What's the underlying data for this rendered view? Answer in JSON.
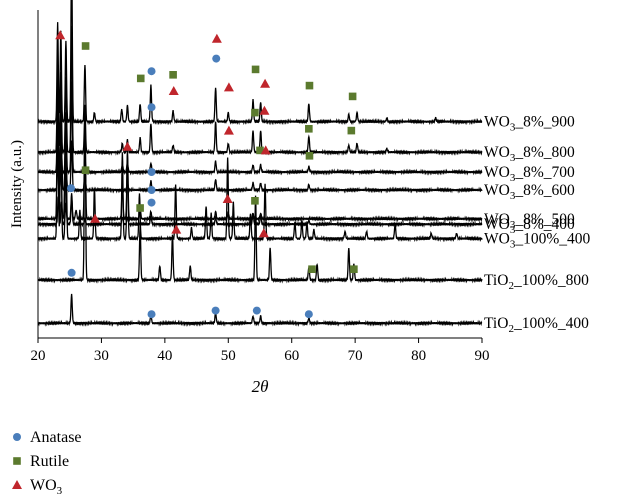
{
  "chart_data": {
    "type": "line",
    "xlabel": "2θ",
    "ylabel": "Intensity (a.u.)",
    "xlim": [
      20,
      90
    ],
    "x_ticks": [
      "20",
      "30",
      "40",
      "50",
      "60",
      "70",
      "80",
      "90"
    ],
    "legend": {
      "placement": "bottom-left",
      "entries": [
        {
          "name": "Anatase",
          "marker": "circle",
          "color": "#4a7ebb"
        },
        {
          "name": "Rutile",
          "marker": "square",
          "color": "#5b7a2e"
        },
        {
          "name": "WO3",
          "marker": "triangle",
          "color": "#c0262c"
        }
      ]
    },
    "series": [
      {
        "name": "WO3_8%_900",
        "name_parts": [
          "WO",
          "3",
          "_8%_900"
        ],
        "baseline": 0.62,
        "peaks": [
          [
            23.1,
            0.55
          ],
          [
            23.6,
            0.5
          ],
          [
            24.4,
            0.45
          ],
          [
            25.3,
            0.95
          ],
          [
            27.4,
            0.32
          ],
          [
            28.9,
            0.05
          ],
          [
            33.2,
            0.07
          ],
          [
            34.1,
            0.09
          ],
          [
            36.1,
            0.1
          ],
          [
            37.8,
            0.2
          ],
          [
            41.3,
            0.06
          ],
          [
            48.0,
            0.19
          ],
          [
            50.0,
            0.05
          ],
          [
            53.9,
            0.12
          ],
          [
            55.1,
            0.11
          ],
          [
            62.7,
            0.1
          ],
          [
            69.0,
            0.04
          ],
          [
            70.3,
            0.05
          ],
          [
            75.0,
            0.02
          ],
          [
            82.7,
            0.02
          ]
        ]
      },
      {
        "name": "WO3_8%_800",
        "name_parts": [
          "WO",
          "3",
          "_8%_800"
        ],
        "baseline": 0.79,
        "peaks": [
          [
            23.1,
            0.5
          ],
          [
            23.6,
            0.45
          ],
          [
            24.4,
            0.42
          ],
          [
            25.3,
            0.7
          ],
          [
            27.4,
            0.24
          ],
          [
            33.3,
            0.05
          ],
          [
            34.1,
            0.07
          ],
          [
            36.1,
            0.08
          ],
          [
            37.8,
            0.16
          ],
          [
            41.3,
            0.04
          ],
          [
            48.0,
            0.17
          ],
          [
            50.0,
            0.05
          ],
          [
            53.9,
            0.12
          ],
          [
            55.1,
            0.12
          ],
          [
            62.7,
            0.09
          ],
          [
            69.0,
            0.04
          ],
          [
            70.3,
            0.05
          ],
          [
            75.0,
            0.02
          ]
        ]
      },
      {
        "name": "WO3_8%_700",
        "name_parts": [
          "WO",
          "3",
          "_8%_700"
        ],
        "baseline": 0.9,
        "peaks": [
          [
            23.1,
            0.35
          ],
          [
            23.6,
            0.3
          ],
          [
            24.4,
            0.28
          ],
          [
            25.3,
            0.5
          ],
          [
            27.4,
            0.08
          ],
          [
            33.3,
            0.04
          ],
          [
            34.1,
            0.05
          ],
          [
            37.8,
            0.05
          ],
          [
            48.0,
            0.06
          ],
          [
            53.9,
            0.04
          ],
          [
            55.1,
            0.04
          ],
          [
            62.7,
            0.03
          ]
        ]
      },
      {
        "name": "WO3_8%_600",
        "name_parts": [
          "WO",
          "3",
          "_8%_600"
        ],
        "baseline": 1.0,
        "peaks": [
          [
            23.2,
            0.25
          ],
          [
            23.7,
            0.22
          ],
          [
            24.4,
            0.2
          ],
          [
            25.3,
            0.28
          ],
          [
            27.4,
            0.1
          ],
          [
            34.1,
            0.04
          ],
          [
            37.8,
            0.05
          ],
          [
            48.0,
            0.06
          ],
          [
            53.9,
            0.04
          ],
          [
            55.1,
            0.04
          ],
          [
            62.7,
            0.03
          ]
        ]
      },
      {
        "name": "WO3_8%_500",
        "name_parts": [
          "WO",
          "3",
          "_8%_500"
        ],
        "baseline": 1.16,
        "peaks": [
          [
            23.1,
            0.8
          ],
          [
            23.6,
            0.5
          ],
          [
            24.3,
            0.45
          ],
          [
            25.3,
            0.14
          ],
          [
            26.0,
            0.05
          ],
          [
            27.4,
            0.55
          ],
          [
            33.3,
            0.2
          ],
          [
            34.1,
            0.35
          ],
          [
            36.1,
            0.06
          ],
          [
            37.8,
            0.04
          ],
          [
            48.0,
            0.04
          ],
          [
            50.0,
            0.03
          ],
          [
            53.9,
            0.03
          ],
          [
            55.1,
            0.03
          ]
        ]
      },
      {
        "name": "WO3_8%_400",
        "name_parts": [
          "WO",
          "3",
          "_8%_400"
        ],
        "baseline": 1.19,
        "peaks": [
          [
            23.2,
            0.15
          ],
          [
            23.7,
            0.12
          ],
          [
            24.4,
            0.12
          ],
          [
            25.3,
            0.15
          ],
          [
            27.4,
            0.03
          ],
          [
            33.3,
            0.04
          ],
          [
            34.1,
            0.04
          ],
          [
            37.8,
            0.04
          ],
          [
            48.0,
            0.04
          ],
          [
            53.9,
            0.05
          ],
          [
            55.1,
            0.05
          ],
          [
            62.7,
            0.02
          ]
        ]
      },
      {
        "name": "WO3_100%_400",
        "name_parts": [
          "WO",
          "3",
          "_100%_400"
        ],
        "baseline": 1.27,
        "peaks": [
          [
            23.1,
            0.8
          ],
          [
            23.6,
            0.75
          ],
          [
            24.4,
            0.7
          ],
          [
            26.6,
            0.16
          ],
          [
            28.9,
            0.28
          ],
          [
            33.3,
            0.48
          ],
          [
            34.1,
            0.5
          ],
          [
            36.0,
            0.25
          ],
          [
            41.7,
            0.3
          ],
          [
            44.2,
            0.06
          ],
          [
            46.5,
            0.18
          ],
          [
            47.3,
            0.14
          ],
          [
            49.9,
            0.45
          ],
          [
            50.8,
            0.2
          ],
          [
            53.5,
            0.14
          ],
          [
            55.8,
            0.3
          ],
          [
            60.5,
            0.09
          ],
          [
            61.6,
            0.1
          ],
          [
            62.4,
            0.09
          ],
          [
            63.5,
            0.05
          ],
          [
            68.4,
            0.04
          ],
          [
            71.8,
            0.04
          ],
          [
            76.3,
            0.08
          ],
          [
            82.0,
            0.03
          ],
          [
            86.0,
            0.03
          ]
        ]
      },
      {
        "name": "TiO2_100%_800",
        "name_parts": [
          "TiO",
          "2",
          "_100%_800"
        ],
        "baseline": 1.5,
        "peaks": [
          [
            27.4,
            0.97
          ],
          [
            36.1,
            0.3
          ],
          [
            39.2,
            0.08
          ],
          [
            41.2,
            0.25
          ],
          [
            44.0,
            0.08
          ],
          [
            54.3,
            0.47
          ],
          [
            56.6,
            0.18
          ],
          [
            62.7,
            0.07
          ],
          [
            64.0,
            0.09
          ],
          [
            69.0,
            0.18
          ],
          [
            69.8,
            0.09
          ]
        ]
      },
      {
        "name": "TiO2_100%_400",
        "name_parts": [
          "TiO",
          "2",
          "_100%_400"
        ],
        "baseline": 1.74,
        "peaks": [
          [
            25.3,
            0.16
          ],
          [
            37.8,
            0.04
          ],
          [
            48.0,
            0.06
          ],
          [
            53.9,
            0.04
          ],
          [
            55.1,
            0.04
          ],
          [
            62.7,
            0.03
          ]
        ]
      }
    ],
    "phase_markers": [
      {
        "phase": "Anatase",
        "x": 25.3,
        "on": "WO3_8%_900",
        "height": 1.01
      },
      {
        "phase": "WO3",
        "x": 23.5,
        "on": "WO3_8%_900",
        "height": 0.48
      },
      {
        "phase": "Rutile",
        "x": 27.5,
        "on": "WO3_8%_900",
        "height": 0.42
      },
      {
        "phase": "Rutile",
        "x": 36.2,
        "on": "WO3_8%_900",
        "height": 0.24
      },
      {
        "phase": "Anatase",
        "x": 37.9,
        "on": "WO3_8%_900",
        "height": 0.28
      },
      {
        "phase": "Rutile",
        "x": 41.3,
        "on": "WO3_8%_900",
        "height": 0.26
      },
      {
        "phase": "WO3",
        "x": 41.4,
        "on": "WO3_8%_900",
        "height": 0.17
      },
      {
        "phase": "WO3",
        "x": 48.2,
        "on": "WO3_8%_900",
        "height": 0.46
      },
      {
        "phase": "Anatase",
        "x": 48.1,
        "on": "WO3_8%_900",
        "height": 0.35
      },
      {
        "phase": "WO3",
        "x": 50.1,
        "on": "WO3_8%_900",
        "height": 0.19
      },
      {
        "phase": "Rutile",
        "x": 54.3,
        "on": "WO3_8%_900",
        "height": 0.29
      },
      {
        "phase": "WO3",
        "x": 55.8,
        "on": "WO3_8%_900",
        "height": 0.21
      },
      {
        "phase": "Rutile",
        "x": 62.8,
        "on": "WO3_8%_900",
        "height": 0.2
      },
      {
        "phase": "Rutile",
        "x": 69.6,
        "on": "WO3_8%_900",
        "height": 0.14
      },
      {
        "phase": "Anatase",
        "x": 37.9,
        "on": "WO3_8%_800",
        "height": 0.25
      },
      {
        "phase": "WO3",
        "x": 50.1,
        "on": "WO3_8%_800",
        "height": 0.12
      },
      {
        "phase": "Rutile",
        "x": 54.2,
        "on": "WO3_8%_800",
        "height": 0.22
      },
      {
        "phase": "WO3",
        "x": 55.7,
        "on": "WO3_8%_800",
        "height": 0.23
      },
      {
        "phase": "Rutile",
        "x": 62.7,
        "on": "WO3_8%_800",
        "height": 0.13
      },
      {
        "phase": "Rutile",
        "x": 69.4,
        "on": "WO3_8%_800",
        "height": 0.12
      },
      {
        "phase": "Rutile",
        "x": 55.0,
        "on": "WO3_8%_800",
        "height": 0.01
      },
      {
        "phase": "WO3",
        "x": 55.9,
        "on": "WO3_8%_800",
        "height": 0.01
      },
      {
        "phase": "Rutile",
        "x": 62.8,
        "on": "WO3_8%_700",
        "height": 0.09
      },
      {
        "phase": "Rutile",
        "x": 27.5,
        "on": "WO3_8%_700",
        "height": 0.01
      },
      {
        "phase": "Anatase",
        "x": 37.9,
        "on": "WO3_8%_700",
        "height": -0.1
      },
      {
        "phase": "WO3",
        "x": 34.1,
        "on": "WO3_8%_500",
        "height": 0.4
      },
      {
        "phase": "Anatase",
        "x": 37.9,
        "on": "WO3_8%_500",
        "height": 0.26
      },
      {
        "phase": "Anatase",
        "x": 25.2,
        "on": "WO3_8%_500",
        "height": 0.17
      },
      {
        "phase": "Rutile",
        "x": 36.1,
        "on": "WO3_8%_400",
        "height": 0.09
      },
      {
        "phase": "Anatase",
        "x": 37.9,
        "on": "WO3_8%_400",
        "height": 0.12
      },
      {
        "phase": "WO3",
        "x": 49.9,
        "on": "WO3_8%_400",
        "height": 0.14
      },
      {
        "phase": "Rutile",
        "x": 54.2,
        "on": "WO3_8%_400",
        "height": 0.13
      },
      {
        "phase": "WO3",
        "x": 29.0,
        "on": "WO3_8%_400",
        "height": 0.03
      },
      {
        "phase": "WO3",
        "x": 41.8,
        "on": "WO3_8%_400",
        "height": -0.03
      },
      {
        "phase": "WO3",
        "x": 55.6,
        "on": "WO3_8%_400",
        "height": -0.05
      },
      {
        "phase": "Anatase",
        "x": 25.3,
        "on": "TiO2_100%_800",
        "height": 0.04
      },
      {
        "phase": "Rutile",
        "x": 63.2,
        "on": "TiO2_100%_800",
        "height": 0.06
      },
      {
        "phase": "Rutile",
        "x": 69.8,
        "on": "TiO2_100%_800",
        "height": 0.06
      },
      {
        "phase": "Anatase",
        "x": 37.9,
        "on": "TiO2_100%_400",
        "height": 0.05
      },
      {
        "phase": "Anatase",
        "x": 48.0,
        "on": "TiO2_100%_400",
        "height": 0.07
      },
      {
        "phase": "Anatase",
        "x": 54.5,
        "on": "TiO2_100%_400",
        "height": 0.07
      },
      {
        "phase": "Anatase",
        "x": 62.7,
        "on": "TiO2_100%_400",
        "height": 0.05
      }
    ]
  }
}
